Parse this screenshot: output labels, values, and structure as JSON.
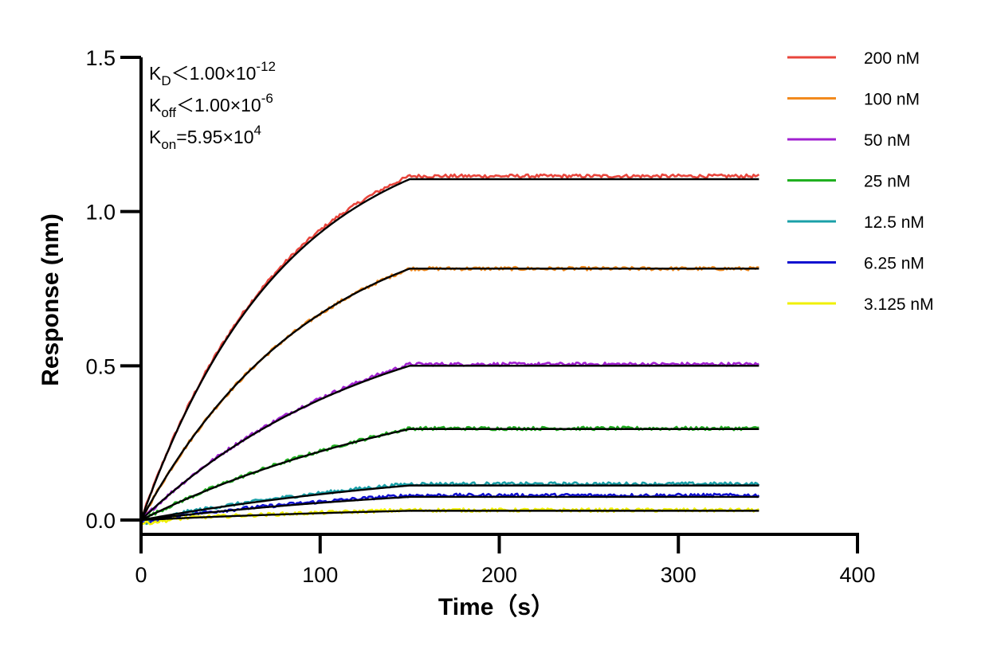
{
  "chart_data": {
    "type": "line",
    "xlabel": "Time（s）",
    "ylabel": "Response (nm)",
    "xlim": [
      0,
      400
    ],
    "ylim": [
      0,
      1.5
    ],
    "xticks": [
      "0",
      "100",
      "200",
      "300",
      "400"
    ],
    "yticks": [
      "0.0",
      "0.5",
      "1.0",
      "1.5"
    ],
    "xtick_values": [
      0,
      100,
      200,
      300,
      400
    ],
    "ytick_values": [
      0,
      0.5,
      1.0,
      1.5
    ],
    "association_end": 150,
    "x_end": 345,
    "legend_position": "top-right",
    "annotations": [
      {
        "base": "K",
        "sub": "D",
        "rel": "＜",
        "value": "1.00×10",
        "exp": "-12"
      },
      {
        "base": "K",
        "sub": "off",
        "rel": "＜",
        "value": "1.00×10",
        "exp": "-6"
      },
      {
        "base": "K",
        "sub": "on",
        "rel": "=",
        "value": "5.95×10",
        "exp": "4"
      }
    ],
    "series": [
      {
        "name": "200 nM",
        "color": "#e8453c",
        "plateau": 1.115
      },
      {
        "name": "100 nM",
        "color": "#f28a1e",
        "plateau": 0.815
      },
      {
        "name": "50 nM",
        "color": "#a020d0",
        "plateau": 0.505
      },
      {
        "name": "25 nM",
        "color": "#20b020",
        "plateau": 0.297
      },
      {
        "name": "12.5 nM",
        "color": "#1aa0a8",
        "plateau": 0.117
      },
      {
        "name": "6.25 nM",
        "color": "#1010d0",
        "plateau": 0.08
      },
      {
        "name": "3.125 nM",
        "color": "#f0f000",
        "plateau": 0.032
      }
    ],
    "fit_curves": {
      "color": "#000000",
      "plateaus": [
        1.105,
        0.815,
        0.5,
        0.295,
        0.112,
        0.075,
        0.03
      ]
    }
  }
}
